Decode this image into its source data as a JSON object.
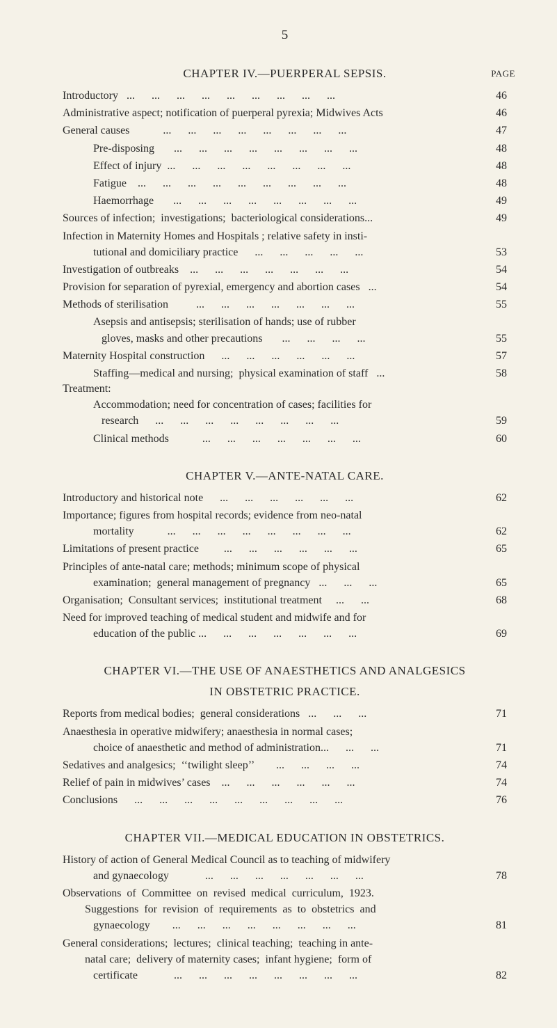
{
  "page_number": "5",
  "page_label": "PAGE",
  "chapters": [
    {
      "title": "CHAPTER IV.—PUERPERAL SEPSIS.",
      "items": [
        {
          "type": "item",
          "label": "Introductory   ...      ...      ...      ...      ...      ...      ...      ...      ...",
          "page": "46"
        },
        {
          "type": "item",
          "label": "Administrative aspect; notification of puerperal pyrexia; Midwives Acts",
          "page": "46"
        },
        {
          "type": "item",
          "label": "General causes            ...      ...      ...      ...      ...      ...      ...      ...",
          "page": "47"
        },
        {
          "type": "sub",
          "label": "Pre-disposing       ...      ...      ...      ...      ...      ...      ...      ...",
          "page": "48"
        },
        {
          "type": "sub",
          "label": "Effect of injury  ...      ...      ...      ...      ...      ...      ...      ...",
          "page": "48"
        },
        {
          "type": "sub",
          "label": "Fatigue    ...      ...      ...      ...      ...      ...      ...      ...      ...",
          "page": "48"
        },
        {
          "type": "sub",
          "label": "Haemorrhage       ...      ...      ...      ...      ...      ...      ...      ...",
          "page": "49"
        },
        {
          "type": "item",
          "label": "Sources of infection;  investigations;  bacteriological considerations...",
          "page": "49"
        },
        {
          "type": "multi",
          "first": "Infection in Maternity Homes and Hospitals ;  relative safety in insti-",
          "last": "tutional and domiciliary practice      ...      ...      ...      ...      ...",
          "page": "53"
        },
        {
          "type": "item",
          "label": "Investigation of outbreaks    ...      ...      ...      ...      ...      ...      ...",
          "page": "54"
        },
        {
          "type": "item",
          "label": "Provision for separation of pyrexial, emergency and abortion cases   ...",
          "page": "54"
        },
        {
          "type": "item",
          "label": "Methods of sterilisation          ...      ...      ...      ...      ...      ...      ...",
          "page": "55"
        },
        {
          "type": "multi",
          "first_indent": true,
          "first": "Asepsis and antisepsis;  sterilisation of hands;  use of rubber",
          "last": "   gloves, masks and other precautions       ...      ...      ...      ...",
          "page": "55"
        },
        {
          "type": "item",
          "label": "Maternity Hospital construction      ...      ...      ...      ...      ...      ...",
          "page": "57"
        },
        {
          "type": "sub",
          "label": "Staffing—medical and nursing;  physical examination of staff   ...",
          "page": "58"
        },
        {
          "type": "section",
          "label": "Treatment:"
        },
        {
          "type": "multi",
          "first_indent": true,
          "first": "Accommodation;  need for concentration of cases;  facilities for",
          "last": "   research      ...      ...      ...      ...      ...      ...      ...      ...",
          "page": "59"
        },
        {
          "type": "sub",
          "label": "Clinical methods            ...      ...      ...      ...      ...      ...      ...",
          "page": "60"
        }
      ]
    },
    {
      "title": "CHAPTER V.—ANTE-NATAL CARE.",
      "items": [
        {
          "type": "item",
          "label": "Introductory and historical note      ...      ...      ...      ...      ...      ...",
          "page": "62"
        },
        {
          "type": "multi",
          "first": "Importance;  figures from hospital records;  evidence from neo-natal",
          "last": "mortality            ...      ...      ...      ...      ...      ...      ...      ...",
          "page": "62"
        },
        {
          "type": "item",
          "label": "Limitations of present practice         ...      ...      ...      ...      ...      ...",
          "page": "65"
        },
        {
          "type": "multi",
          "first": "Principles of ante-natal care; methods;  minimum scope of physical",
          "last": "examination;  general management of pregnancy   ...      ...      ...",
          "page": "65"
        },
        {
          "type": "item",
          "label": "Organisation;  Consultant services;  institutional treatment     ...      ...",
          "page": "68"
        },
        {
          "type": "multi",
          "first": "Need for improved teaching of medical student and midwife and for",
          "last": "education of the public ...      ...      ...      ...      ...      ...      ...",
          "page": "69"
        }
      ]
    },
    {
      "title": "CHAPTER VI.—THE USE OF ANAESTHETICS AND ANALGESICS",
      "subtitle": "IN OBSTETRIC PRACTICE.",
      "items": [
        {
          "type": "item",
          "label": "Reports from medical bodies;  general considerations   ...      ...      ...",
          "page": "71"
        },
        {
          "type": "multi",
          "first": "Anaesthesia  in  operative  midwifery;   anaesthesia  in  normal  cases;",
          "last": "choice of anaesthetic and method of administration...      ...      ...",
          "page": "71"
        },
        {
          "type": "item",
          "label": "Sedatives and analgesics;  ‘‘twilight sleep’’        ...      ...      ...      ...",
          "page": "74"
        },
        {
          "type": "item",
          "label": "Relief of pain in midwives’ cases    ...      ...      ...      ...      ...      ...",
          "page": "74"
        },
        {
          "type": "item",
          "label": "Conclusions      ...      ...      ...      ...      ...      ...      ...      ...      ...",
          "page": "76"
        }
      ]
    },
    {
      "title": "CHAPTER VII.—MEDICAL EDUCATION IN OBSTETRICS.",
      "items": [
        {
          "type": "multi",
          "first": "History of action of General Medical Council as to teaching of midwifery",
          "last": "and gynaecology             ...      ...      ...      ...      ...      ...      ...",
          "page": "78"
        },
        {
          "type": "multi3",
          "lines": [
            "Observations  of  Committee  on  revised  medical  curriculum,  1923.",
            "        Suggestions  for  revision  of  requirements  as  to  obstetrics  and"
          ],
          "last": "gynaecology        ...      ...      ...      ...      ...      ...      ...      ...",
          "page": "81"
        },
        {
          "type": "multi3",
          "lines": [
            "General considerations;  lectures;  clinical teaching;  teaching in ante-",
            "        natal care;  delivery of maternity cases;  infant hygiene;  form of"
          ],
          "last": "certificate             ...      ...      ...      ...      ...      ...      ...      ...",
          "page": "82"
        }
      ]
    }
  ]
}
